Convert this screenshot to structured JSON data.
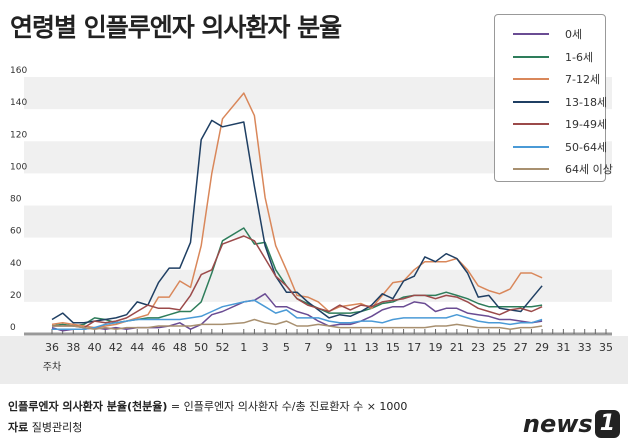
{
  "title": "연령별 인플루엔자 의사환자 분율",
  "footer": {
    "formula_bold": "인플루엔자 의사환자 분율(천분율)",
    "formula_rest": " = 인플루엔자 의사환자 수/총 진료환자 수 × 1000",
    "source_label": "자료",
    "source": "질병관리청"
  },
  "logo": {
    "text": "news",
    "mark": "1"
  },
  "chart_data": {
    "type": "line",
    "title": "연령별 인플루엔자 의사환자 분율",
    "xlabel": "주차",
    "ylabel": "",
    "ylim": [
      0,
      160
    ],
    "yticks": [
      0,
      20,
      40,
      60,
      80,
      100,
      120,
      140,
      160
    ],
    "weeks": [
      "36",
      "37",
      "38",
      "39",
      "40",
      "41",
      "42",
      "43",
      "44",
      "45",
      "46",
      "47",
      "48",
      "49",
      "50",
      "51",
      "52",
      "1",
      "2",
      "3",
      "4",
      "5",
      "6",
      "7",
      "8",
      "9",
      "10",
      "11",
      "12",
      "13",
      "14",
      "15",
      "16",
      "17",
      "18",
      "19",
      "20",
      "21",
      "22",
      "23",
      "24",
      "25",
      "26",
      "27",
      "28",
      "29",
      "30",
      "31",
      "32",
      "33",
      "34",
      "35"
    ],
    "xtick_labels": [
      "36",
      "38",
      "40",
      "42",
      "44",
      "46",
      "48",
      "50",
      "52",
      "1",
      "3",
      "5",
      "7",
      "9",
      "11",
      "13",
      "15",
      "17",
      "19",
      "21",
      "23",
      "25",
      "27",
      "29",
      "31",
      "33",
      "35"
    ],
    "grid": "alternating bands",
    "legend_position": "top-right",
    "series": [
      {
        "name": "0세",
        "color": "#6a4c93",
        "values": [
          4,
          2,
          3,
          3,
          4,
          3,
          4,
          3,
          4,
          4,
          4,
          5,
          7,
          3,
          6,
          12,
          14,
          20,
          21,
          25,
          17,
          17,
          14,
          12,
          8,
          5,
          6,
          6,
          8,
          11,
          15,
          17,
          17,
          20,
          19,
          14,
          16,
          16,
          13,
          12,
          11,
          9,
          9,
          8,
          7,
          8
        ]
      },
      {
        "name": "1-6세",
        "color": "#2e7d5b",
        "values": [
          5,
          6,
          5,
          6,
          10,
          9,
          7,
          8,
          9,
          10,
          10,
          12,
          14,
          14,
          20,
          38,
          58,
          66,
          56,
          57,
          40,
          30,
          22,
          19,
          16,
          13,
          13,
          13,
          14,
          16,
          19,
          20,
          23,
          24,
          24,
          24,
          26,
          24,
          22,
          19,
          17,
          17,
          17,
          17,
          17,
          18
        ]
      },
      {
        "name": "7-12세",
        "color": "#d9875a",
        "values": [
          6,
          7,
          6,
          5,
          4,
          5,
          6,
          8,
          10,
          12,
          23,
          23,
          33,
          29,
          55,
          100,
          134,
          150,
          136,
          85,
          55,
          40,
          24,
          23,
          20,
          14,
          17,
          18,
          19,
          16,
          24,
          32,
          33,
          40,
          45,
          45,
          45,
          47,
          40,
          30,
          27,
          25,
          28,
          38,
          38,
          35
        ]
      },
      {
        "name": "13-18세",
        "color": "#1f3f63",
        "values": [
          9,
          13,
          7,
          7,
          8,
          9,
          10,
          12,
          20,
          18,
          32,
          41,
          41,
          57,
          121,
          133,
          129,
          132,
          92,
          55,
          36,
          26,
          26,
          20,
          15,
          10,
          12,
          11,
          14,
          18,
          25,
          22,
          33,
          36,
          48,
          45,
          50,
          47,
          38,
          23,
          24,
          16,
          15,
          14,
          22,
          30
        ]
      },
      {
        "name": "19-49세",
        "color": "#9b4a4a",
        "values": [
          5,
          5,
          5,
          4,
          8,
          7,
          8,
          10,
          14,
          18,
          16,
          16,
          15,
          24,
          37,
          40,
          56,
          61,
          58,
          47,
          36,
          30,
          22,
          18,
          16,
          14,
          18,
          15,
          18,
          17,
          20,
          21,
          22,
          24,
          24,
          22,
          24,
          23,
          20,
          16,
          14,
          12,
          15,
          16,
          14,
          17
        ]
      },
      {
        "name": "50-64세",
        "color": "#4a9ad6",
        "values": [
          3,
          3,
          3,
          3,
          4,
          6,
          7,
          8,
          9,
          9,
          9,
          9,
          9,
          10,
          11,
          14,
          17,
          20,
          21,
          17,
          13,
          15,
          10,
          10,
          10,
          8,
          7,
          7,
          8,
          8,
          7,
          9,
          10,
          10,
          10,
          10,
          10,
          12,
          10,
          8,
          7,
          7,
          6,
          7,
          7,
          9
        ]
      },
      {
        "name": "64세 이상",
        "color": "#a89070",
        "values": [
          5,
          5,
          5,
          4,
          3,
          4,
          3,
          4,
          4,
          4,
          5,
          5,
          5,
          5,
          6,
          6,
          6,
          7,
          9,
          7,
          6,
          8,
          5,
          5,
          6,
          5,
          4,
          4,
          4,
          4,
          4,
          4,
          4,
          4,
          4,
          5,
          5,
          6,
          5,
          4,
          4,
          4,
          3,
          4,
          4,
          5
        ]
      }
    ]
  }
}
